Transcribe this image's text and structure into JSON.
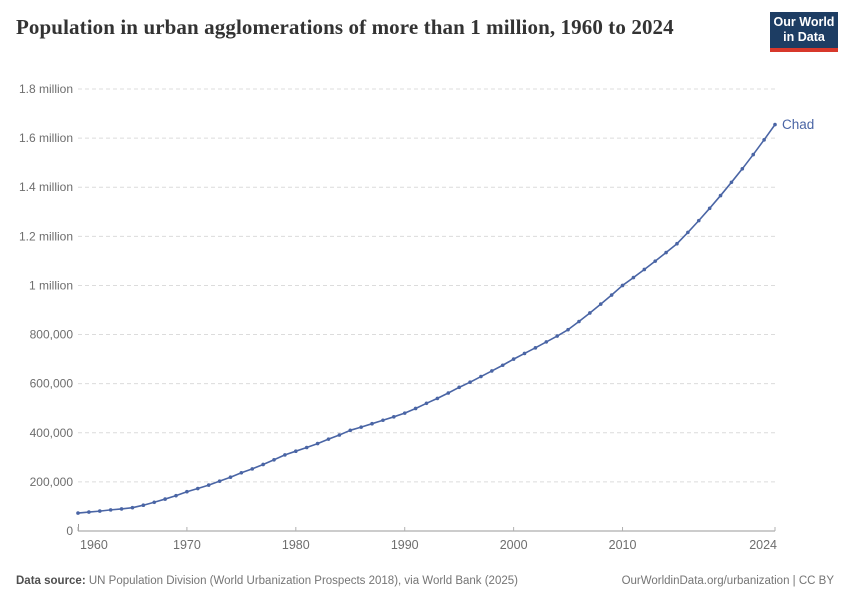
{
  "header": {
    "title": "Population in urban agglomerations of more than 1 million, 1960 to 2024",
    "logo": {
      "line1": "Our World",
      "line2": "in Data"
    }
  },
  "footer": {
    "source_label": "Data source:",
    "source_text": " UN Population Division (World Urbanization Prospects 2018), via World Bank (2025)",
    "credit": "OurWorldinData.org/urbanization | CC BY"
  },
  "colors": {
    "line": "#4A65A5",
    "entity_label": "#4A65A5",
    "grid": "#dcdcdc",
    "axis": "#9a9a9a",
    "tick": "#b0b0b0",
    "tick_text": "#6e6e6e",
    "title_text": "#333333",
    "logo_bg": "#1d3d63",
    "logo_bar": "#d7382b",
    "footer_text": "#757575"
  },
  "chart_data": {
    "type": "line",
    "title": "Population in urban agglomerations of more than 1 million, 1960 to 2024",
    "xlabel": "",
    "ylabel": "",
    "xlim": [
      1960,
      2024
    ],
    "ylim": [
      0,
      1800000
    ],
    "grid": "horizontal-dashed",
    "legend_position": "end-of-line-label",
    "end_label": "Chad",
    "x_ticks": [
      {
        "value": 1960,
        "label": "1960",
        "align": "start"
      },
      {
        "value": 1970,
        "label": "1970",
        "align": "middle"
      },
      {
        "value": 1980,
        "label": "1980",
        "align": "middle"
      },
      {
        "value": 1990,
        "label": "1990",
        "align": "middle"
      },
      {
        "value": 2000,
        "label": "2000",
        "align": "middle"
      },
      {
        "value": 2010,
        "label": "2010",
        "align": "middle"
      },
      {
        "value": 2024,
        "label": "2024",
        "align": "end"
      }
    ],
    "y_ticks": [
      {
        "value": 0,
        "label": "0"
      },
      {
        "value": 200000,
        "label": "200,000"
      },
      {
        "value": 400000,
        "label": "400,000"
      },
      {
        "value": 600000,
        "label": "600,000"
      },
      {
        "value": 800000,
        "label": "800,000"
      },
      {
        "value": 1000000,
        "label": "1 million"
      },
      {
        "value": 1200000,
        "label": "1.2 million"
      },
      {
        "value": 1400000,
        "label": "1.4 million"
      },
      {
        "value": 1600000,
        "label": "1.6 million"
      },
      {
        "value": 1800000,
        "label": "1.8 million"
      }
    ],
    "series": [
      {
        "name": "Chad",
        "color": "#4A65A5",
        "x": [
          1960,
          1961,
          1962,
          1963,
          1964,
          1965,
          1966,
          1967,
          1968,
          1969,
          1970,
          1971,
          1972,
          1973,
          1974,
          1975,
          1976,
          1977,
          1978,
          1979,
          1980,
          1981,
          1982,
          1983,
          1984,
          1985,
          1986,
          1987,
          1988,
          1989,
          1990,
          1991,
          1992,
          1993,
          1994,
          1995,
          1996,
          1997,
          1998,
          1999,
          2000,
          2001,
          2002,
          2003,
          2004,
          2005,
          2006,
          2007,
          2008,
          2009,
          2010,
          2011,
          2012,
          2013,
          2014,
          2015,
          2016,
          2017,
          2018,
          2019,
          2020,
          2021,
          2022,
          2023,
          2024
        ],
        "values": [
          73000,
          77000,
          81000,
          86000,
          90000,
          95000,
          105000,
          117000,
          130000,
          144000,
          160000,
          173000,
          187000,
          203000,
          219000,
          237000,
          253000,
          271000,
          290000,
          310000,
          325000,
          340000,
          356000,
          374000,
          391000,
          410000,
          423000,
          437000,
          451000,
          465000,
          480000,
          499000,
          520000,
          540000,
          562000,
          585000,
          606000,
          629000,
          652000,
          675000,
          700000,
          723000,
          746000,
          770000,
          794000,
          820000,
          853000,
          888000,
          924000,
          961000,
          1000000,
          1032000,
          1065000,
          1099000,
          1134000,
          1170000,
          1216000,
          1264000,
          1314000,
          1366000,
          1420000,
          1475000,
          1533000,
          1593000,
          1655000
        ]
      }
    ]
  }
}
